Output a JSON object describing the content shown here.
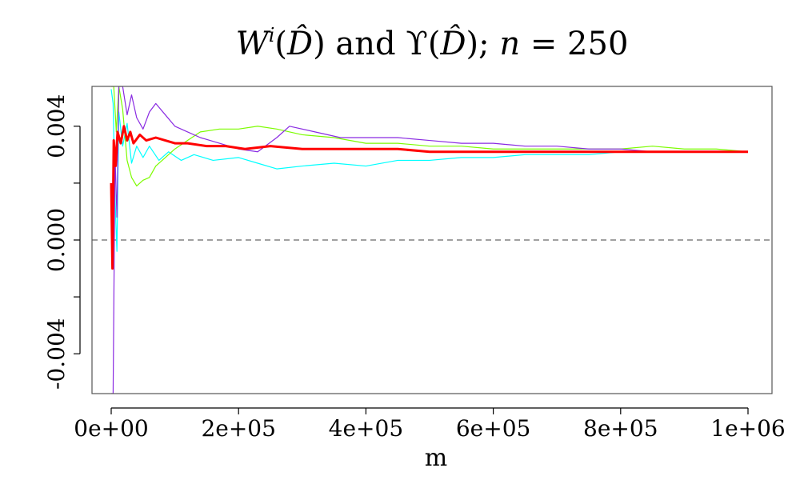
{
  "chart_data": {
    "type": "line",
    "title": "W^i(D̂) and ϒ(D̂); n = 250",
    "title_parts": {
      "w_base": "W",
      "w_sup": "i",
      "d_hat": "D̂",
      "and": "and",
      "upsilon": "ϒ",
      "semicolon": ";",
      "n": "n",
      "equals": "=",
      "n_value": "250"
    },
    "xlabel": "m",
    "ylabel": "",
    "xlim": [
      0,
      1000000
    ],
    "ylim": [
      -0.0054,
      0.0054
    ],
    "x_ticks": [
      {
        "value": 0,
        "label": "0e+00"
      },
      {
        "value": 200000,
        "label": "2e+05"
      },
      {
        "value": 400000,
        "label": "4e+05"
      },
      {
        "value": 600000,
        "label": "6e+05"
      },
      {
        "value": 800000,
        "label": "8e+05"
      },
      {
        "value": 1000000,
        "label": "1e+06"
      }
    ],
    "y_ticks": [
      {
        "value": -0.004,
        "label": "-0.004"
      },
      {
        "value": -0.002,
        "label": ""
      },
      {
        "value": 0.0,
        "label": "0.000"
      },
      {
        "value": 0.002,
        "label": ""
      },
      {
        "value": 0.004,
        "label": "0.004"
      }
    ],
    "reference_line": {
      "y": 0,
      "style": "dashed",
      "color": "#808080"
    },
    "series": [
      {
        "color": "#00ffff",
        "points": [
          [
            0,
            0.0053
          ],
          [
            3000,
            0.0048
          ],
          [
            6000,
            0.0015
          ],
          [
            9000,
            -0.0004
          ],
          [
            12000,
            0.0045
          ],
          [
            18000,
            0.0033
          ],
          [
            25000,
            0.0041
          ],
          [
            32000,
            0.0027
          ],
          [
            40000,
            0.0033
          ],
          [
            50000,
            0.0029
          ],
          [
            60000,
            0.0033
          ],
          [
            75000,
            0.0028
          ],
          [
            90000,
            0.0031
          ],
          [
            110000,
            0.0028
          ],
          [
            130000,
            0.003
          ],
          [
            160000,
            0.0028
          ],
          [
            200000,
            0.0029
          ],
          [
            230000,
            0.0027
          ],
          [
            260000,
            0.0025
          ],
          [
            300000,
            0.0026
          ],
          [
            350000,
            0.0027
          ],
          [
            400000,
            0.0026
          ],
          [
            450000,
            0.0028
          ],
          [
            500000,
            0.0028
          ],
          [
            550000,
            0.0029
          ],
          [
            600000,
            0.0029
          ],
          [
            650000,
            0.003
          ],
          [
            700000,
            0.003
          ],
          [
            750000,
            0.003
          ],
          [
            800000,
            0.0031
          ],
          [
            850000,
            0.0031
          ],
          [
            900000,
            0.0031
          ],
          [
            950000,
            0.0031
          ],
          [
            1000000,
            0.0031
          ]
        ]
      },
      {
        "color": "#7cfc00",
        "points": [
          [
            0,
            0.0054
          ],
          [
            4000,
            0.0054
          ],
          [
            8000,
            0.0038
          ],
          [
            12000,
            0.0054
          ],
          [
            18000,
            0.0046
          ],
          [
            25000,
            0.0028
          ],
          [
            32000,
            0.0022
          ],
          [
            40000,
            0.0019
          ],
          [
            50000,
            0.0021
          ],
          [
            60000,
            0.0022
          ],
          [
            70000,
            0.0026
          ],
          [
            85000,
            0.0029
          ],
          [
            100000,
            0.0032
          ],
          [
            120000,
            0.0035
          ],
          [
            140000,
            0.0038
          ],
          [
            170000,
            0.0039
          ],
          [
            200000,
            0.0039
          ],
          [
            230000,
            0.004
          ],
          [
            260000,
            0.0039
          ],
          [
            300000,
            0.0037
          ],
          [
            350000,
            0.0036
          ],
          [
            400000,
            0.0034
          ],
          [
            450000,
            0.0034
          ],
          [
            500000,
            0.0033
          ],
          [
            550000,
            0.0033
          ],
          [
            600000,
            0.0032
          ],
          [
            650000,
            0.0032
          ],
          [
            700000,
            0.0032
          ],
          [
            750000,
            0.0032
          ],
          [
            800000,
            0.0032
          ],
          [
            850000,
            0.0033
          ],
          [
            900000,
            0.0032
          ],
          [
            950000,
            0.0032
          ],
          [
            1000000,
            0.0031
          ]
        ]
      },
      {
        "color": "#8a2be2",
        "points": [
          [
            0,
            -0.0054
          ],
          [
            3000,
            -0.0054
          ],
          [
            6000,
            0.003
          ],
          [
            9000,
            0.0008
          ],
          [
            12000,
            0.0054
          ],
          [
            18000,
            0.0054
          ],
          [
            25000,
            0.0044
          ],
          [
            32000,
            0.0051
          ],
          [
            40000,
            0.0043
          ],
          [
            50000,
            0.0039
          ],
          [
            60000,
            0.0045
          ],
          [
            70000,
            0.0048
          ],
          [
            85000,
            0.0044
          ],
          [
            100000,
            0.004
          ],
          [
            120000,
            0.0038
          ],
          [
            140000,
            0.0036
          ],
          [
            170000,
            0.0034
          ],
          [
            200000,
            0.0032
          ],
          [
            230000,
            0.0031
          ],
          [
            260000,
            0.0036
          ],
          [
            280000,
            0.004
          ],
          [
            320000,
            0.0038
          ],
          [
            360000,
            0.0036
          ],
          [
            400000,
            0.0036
          ],
          [
            450000,
            0.0036
          ],
          [
            500000,
            0.0035
          ],
          [
            550000,
            0.0034
          ],
          [
            600000,
            0.0034
          ],
          [
            650000,
            0.0033
          ],
          [
            700000,
            0.0033
          ],
          [
            750000,
            0.0032
          ],
          [
            800000,
            0.0032
          ],
          [
            850000,
            0.0031
          ],
          [
            900000,
            0.0031
          ],
          [
            950000,
            0.0031
          ],
          [
            1000000,
            0.0031
          ]
        ]
      },
      {
        "color": "#ff0000",
        "points": [
          [
            0,
            0.002
          ],
          [
            2000,
            -0.001
          ],
          [
            4000,
            0.0035
          ],
          [
            7000,
            0.0026
          ],
          [
            10000,
            0.0038
          ],
          [
            15000,
            0.0034
          ],
          [
            20000,
            0.004
          ],
          [
            25000,
            0.0035
          ],
          [
            30000,
            0.0038
          ],
          [
            35000,
            0.0034
          ],
          [
            45000,
            0.0037
          ],
          [
            55000,
            0.0035
          ],
          [
            70000,
            0.0036
          ],
          [
            85000,
            0.0035
          ],
          [
            100000,
            0.0034
          ],
          [
            120000,
            0.0034
          ],
          [
            150000,
            0.0033
          ],
          [
            180000,
            0.0033
          ],
          [
            210000,
            0.0032
          ],
          [
            250000,
            0.0033
          ],
          [
            300000,
            0.0032
          ],
          [
            350000,
            0.0032
          ],
          [
            400000,
            0.0032
          ],
          [
            450000,
            0.0032
          ],
          [
            500000,
            0.0031
          ],
          [
            550000,
            0.0031
          ],
          [
            600000,
            0.0031
          ],
          [
            650000,
            0.0031
          ],
          [
            700000,
            0.0031
          ],
          [
            750000,
            0.0031
          ],
          [
            800000,
            0.0031
          ],
          [
            850000,
            0.0031
          ],
          [
            900000,
            0.0031
          ],
          [
            950000,
            0.0031
          ],
          [
            1000000,
            0.0031
          ]
        ]
      }
    ],
    "colors": {
      "axis": "#000000",
      "box": "#555555"
    }
  }
}
